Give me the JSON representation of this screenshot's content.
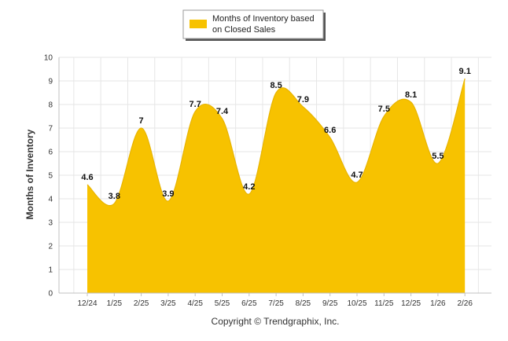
{
  "chart_data": {
    "type": "area",
    "title": "",
    "xlabel": "",
    "ylabel": "Months of Inventory",
    "categories": [
      "12/24",
      "1/25",
      "2/25",
      "3/25",
      "4/25",
      "5/25",
      "6/25",
      "7/25",
      "8/25",
      "9/25",
      "10/25",
      "11/25",
      "12/25",
      "1/26",
      "2/26"
    ],
    "series": [
      {
        "name": "Months of Inventory based on Closed Sales",
        "values": [
          4.6,
          3.8,
          7,
          3.9,
          7.7,
          7.4,
          4.2,
          8.5,
          7.9,
          6.6,
          4.7,
          7.5,
          8.1,
          5.5,
          9.1
        ],
        "data_labels": [
          "4.6",
          "3.8",
          "7",
          "3.9",
          "7.7",
          "7.4",
          "4.2",
          "8.5",
          "7.9",
          "6.6",
          "4.7",
          "7.5",
          "8.1",
          "5.5",
          "9.1"
        ],
        "color": "#F7C200"
      }
    ],
    "ylim": [
      0,
      10
    ],
    "yticks": [
      0,
      1,
      2,
      3,
      4,
      5,
      6,
      7,
      8,
      9,
      10
    ],
    "grid": true,
    "legend": {
      "position": "top-center",
      "line1": "Months of Inventory based",
      "line2": "on Closed Sales"
    }
  },
  "footer": {
    "credit": "Copyright © Trendgraphix, Inc."
  },
  "colors": {
    "area": "#F7C200",
    "grid": "#e6e6e6",
    "axis": "#c0c0c0"
  }
}
